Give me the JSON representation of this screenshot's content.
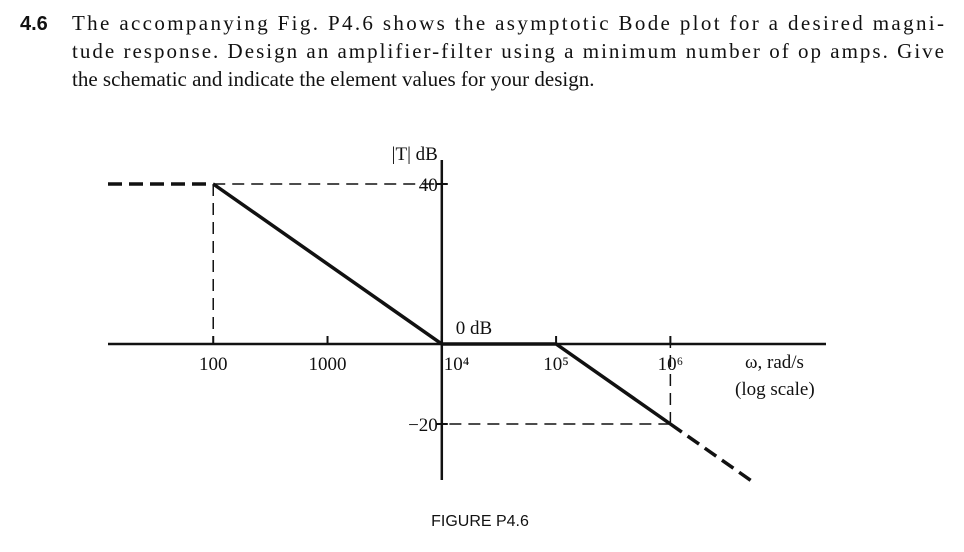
{
  "problem": {
    "number": "4.6",
    "lines": [
      "The accompanying Fig. P4.6 shows the asymptotic Bode plot for a desired magni-",
      "tude response. Design an amplifier-filter using a minimum number of op amps. Give",
      "the schematic and indicate the element values for your design."
    ]
  },
  "chart_data": {
    "type": "line",
    "y_label": "|T| dB",
    "x_label": "ω, rad/s",
    "x_note": "(log scale)",
    "annotation": "0 dB",
    "x": [
      12,
      100,
      10000,
      100000,
      1000000,
      5600000
    ],
    "series": [
      {
        "style": "solid",
        "color": "#111111",
        "values": [
          null,
          40,
          0,
          0,
          -20,
          null
        ]
      },
      {
        "style": "dashed",
        "color": "#111111",
        "values": [
          40,
          40,
          null,
          null,
          -20,
          -35
        ]
      }
    ],
    "xlog": true,
    "xlim": [
      12,
      23000000
    ],
    "xticks": [
      100,
      1000,
      {
        "value": 10000,
        "label": "10⁴"
      },
      {
        "value": 100000,
        "label": "10⁵"
      },
      {
        "value": 1000000,
        "label": "10⁶"
      }
    ],
    "ylim": [
      -34,
      46
    ],
    "yticks": [
      40,
      {
        "value": -20,
        "label": "−20"
      }
    ]
  },
  "caption": "FIGURE P4.6"
}
